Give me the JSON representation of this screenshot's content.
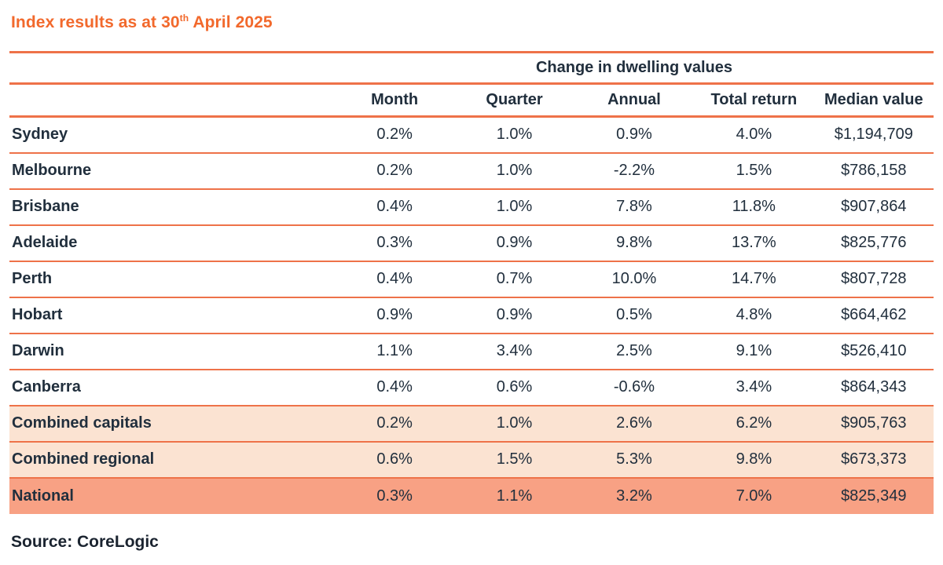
{
  "header": {
    "title_prefix": "Index results as at 30",
    "title_superscript": "th",
    "title_suffix": " April 2025"
  },
  "chart_data": {
    "type": "table",
    "title": "Index results as at 30th April 2025",
    "group_header": "Change in dwelling values",
    "columns": [
      "Month",
      "Quarter",
      "Annual",
      "Total return",
      "Median value"
    ],
    "rows": [
      {
        "label": "Sydney",
        "values": [
          "0.2%",
          "1.0%",
          "0.9%",
          "4.0%",
          "$1,194,709"
        ],
        "highlight": "none"
      },
      {
        "label": "Melbourne",
        "values": [
          "0.2%",
          "1.0%",
          "-2.2%",
          "1.5%",
          "$786,158"
        ],
        "highlight": "none"
      },
      {
        "label": "Brisbane",
        "values": [
          "0.4%",
          "1.0%",
          "7.8%",
          "11.8%",
          "$907,864"
        ],
        "highlight": "none"
      },
      {
        "label": "Adelaide",
        "values": [
          "0.3%",
          "0.9%",
          "9.8%",
          "13.7%",
          "$825,776"
        ],
        "highlight": "none"
      },
      {
        "label": "Perth",
        "values": [
          "0.4%",
          "0.7%",
          "10.0%",
          "14.7%",
          "$807,728"
        ],
        "highlight": "none"
      },
      {
        "label": "Hobart",
        "values": [
          "0.9%",
          "0.9%",
          "0.5%",
          "4.8%",
          "$664,462"
        ],
        "highlight": "none"
      },
      {
        "label": "Darwin",
        "values": [
          "1.1%",
          "3.4%",
          "2.5%",
          "9.1%",
          "$526,410"
        ],
        "highlight": "none"
      },
      {
        "label": "Canberra",
        "values": [
          "0.4%",
          "0.6%",
          "-0.6%",
          "3.4%",
          "$864,343"
        ],
        "highlight": "none"
      },
      {
        "label": "Combined capitals",
        "values": [
          "0.2%",
          "1.0%",
          "2.6%",
          "6.2%",
          "$905,763"
        ],
        "highlight": "peach"
      },
      {
        "label": "Combined regional",
        "values": [
          "0.6%",
          "1.5%",
          "5.3%",
          "9.8%",
          "$673,373"
        ],
        "highlight": "peach"
      },
      {
        "label": "National",
        "values": [
          "0.3%",
          "1.1%",
          "3.2%",
          "7.0%",
          "$825,349"
        ],
        "highlight": "salmon"
      }
    ]
  },
  "footer": {
    "source": "Source: CoreLogic"
  },
  "colors": {
    "accent_orange": "#F2692C",
    "rule_orange": "#EE7249",
    "text_navy": "#212F3D",
    "row_peach": "#FBE3D2",
    "row_salmon": "#F8A184",
    "source_text": "#1B2430"
  }
}
